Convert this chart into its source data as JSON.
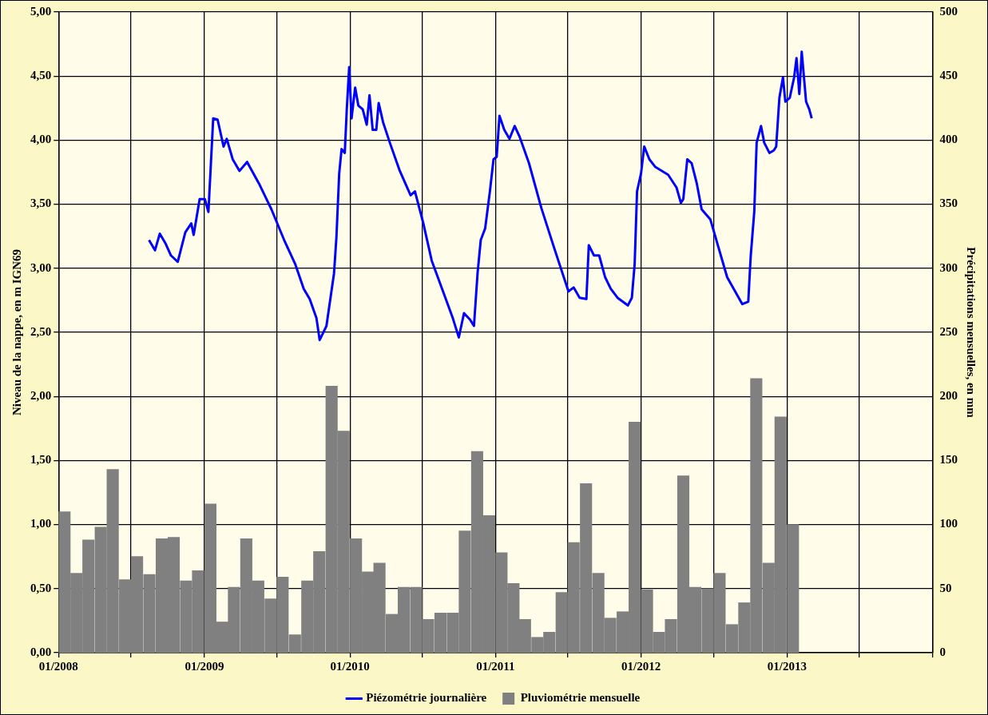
{
  "chart_data": {
    "type": "bar",
    "ylabel": "Niveau de la nappe, en m IGN69",
    "y2label": "Précipitations mensuelles, en mm",
    "xlim": [
      "2008-01",
      "2014-01"
    ],
    "xticks": [
      {
        "value": "2008-01",
        "label": "01/2008"
      },
      {
        "value": "2008-07",
        "label": null
      },
      {
        "value": "2009-01",
        "label": "01/2009"
      },
      {
        "value": "2009-07",
        "label": null
      },
      {
        "value": "2010-01",
        "label": "01/2010"
      },
      {
        "value": "2010-07",
        "label": null
      },
      {
        "value": "2011-01",
        "label": "01/2011"
      },
      {
        "value": "2011-07",
        "label": null
      },
      {
        "value": "2012-01",
        "label": "01/2012"
      },
      {
        "value": "2012-07",
        "label": null
      },
      {
        "value": "2013-01",
        "label": "01/2013"
      },
      {
        "value": "2013-07",
        "label": null
      },
      {
        "value": "2014-01",
        "label": null
      }
    ],
    "ylim": [
      0,
      5
    ],
    "yticks": [
      {
        "value": 0,
        "label": "0,00"
      },
      {
        "value": 0.5,
        "label": "0,50"
      },
      {
        "value": 1,
        "label": "1,00"
      },
      {
        "value": 1.5,
        "label": "1,50"
      },
      {
        "value": 2,
        "label": "2,00"
      },
      {
        "value": 2.5,
        "label": "2,50"
      },
      {
        "value": 3,
        "label": "3,00"
      },
      {
        "value": 3.5,
        "label": "3,50"
      },
      {
        "value": 4,
        "label": "4,00"
      },
      {
        "value": 4.5,
        "label": "4,50"
      },
      {
        "value": 5,
        "label": "5,00"
      }
    ],
    "y2lim": [
      0,
      500
    ],
    "y2ticks": [
      0,
      50,
      100,
      150,
      200,
      250,
      300,
      350,
      400,
      450,
      500
    ],
    "grid": true,
    "legend": "bottom",
    "series": [
      {
        "name": "Piézométrie journalière",
        "type": "line",
        "color": "#0000ff",
        "marker": "none",
        "line_style": "solid",
        "x": [
          "2008-08-15",
          "2008-08-30",
          "2008-09-11",
          "2008-09-26",
          "2008-10-09",
          "2008-10-26",
          "2008-11-14",
          "2008-11-29",
          "2008-12-05",
          "2008-12-20",
          "2009-01-02",
          "2009-01-11",
          "2009-01-23",
          "2009-02-03",
          "2009-02-18",
          "2009-02-26",
          "2009-03-13",
          "2009-03-30",
          "2009-04-18",
          "2009-05-18",
          "2009-06-18",
          "2009-07-20",
          "2009-08-17",
          "2009-09-07",
          "2009-09-22",
          "2009-10-09",
          "2009-10-17",
          "2009-11-03",
          "2009-11-22",
          "2009-11-28",
          "2009-12-05",
          "2009-12-11",
          "2009-12-19",
          "2009-12-24",
          "2009-12-30",
          "2010-01-05",
          "2010-01-14",
          "2010-01-22",
          "2010-02-02",
          "2010-02-12",
          "2010-02-19",
          "2010-02-27",
          "2010-03-08",
          "2010-03-14",
          "2010-03-25",
          "2010-04-11",
          "2010-05-06",
          "2010-06-02",
          "2010-06-13",
          "2010-07-04",
          "2010-07-25",
          "2010-08-20",
          "2010-09-16",
          "2010-10-01",
          "2010-10-14",
          "2010-10-29",
          "2010-11-08",
          "2010-11-17",
          "2010-11-25",
          "2010-12-06",
          "2010-12-18",
          "2010-12-27",
          "2011-01-04",
          "2011-01-11",
          "2011-01-23",
          "2011-02-05",
          "2011-02-18",
          "2011-03-02",
          "2011-03-26",
          "2011-04-26",
          "2011-05-28",
          "2011-07-03",
          "2011-07-16",
          "2011-07-31",
          "2011-08-17",
          "2011-08-23",
          "2011-09-05",
          "2011-09-18",
          "2011-10-03",
          "2011-10-17",
          "2011-11-03",
          "2011-11-29",
          "2011-12-09",
          "2011-12-16",
          "2011-12-22",
          "2012-01-01",
          "2012-01-09",
          "2012-01-22",
          "2012-02-06",
          "2012-03-09",
          "2012-03-30",
          "2012-04-10",
          "2012-04-16",
          "2012-04-26",
          "2012-05-07",
          "2012-05-20",
          "2012-06-01",
          "2012-06-23",
          "2012-08-04",
          "2012-09-11",
          "2012-09-26",
          "2012-10-02",
          "2012-10-11",
          "2012-10-17",
          "2012-10-28",
          "2012-11-05",
          "2012-11-18",
          "2012-11-29",
          "2012-12-05",
          "2012-12-13",
          "2012-12-22",
          "2012-12-28",
          "2013-01-08",
          "2013-01-19",
          "2013-01-25",
          "2013-02-01",
          "2013-02-07",
          "2013-02-18",
          "2013-02-26",
          "2013-03-04"
        ],
        "values": [
          3.22,
          3.14,
          3.27,
          3.19,
          3.1,
          3.05,
          3.28,
          3.35,
          3.26,
          3.54,
          3.54,
          3.44,
          4.17,
          4.16,
          3.95,
          4.01,
          3.85,
          3.76,
          3.83,
          3.66,
          3.46,
          3.22,
          3.03,
          2.84,
          2.76,
          2.61,
          2.44,
          2.55,
          2.96,
          3.24,
          3.74,
          3.93,
          3.9,
          4.24,
          4.57,
          4.17,
          4.41,
          4.27,
          4.24,
          4.12,
          4.35,
          4.08,
          4.08,
          4.29,
          4.14,
          3.98,
          3.76,
          3.57,
          3.6,
          3.35,
          3.06,
          2.84,
          2.61,
          2.46,
          2.65,
          2.6,
          2.55,
          2.96,
          3.22,
          3.31,
          3.6,
          3.85,
          3.87,
          4.19,
          4.08,
          4.01,
          4.11,
          4.03,
          3.82,
          3.47,
          3.16,
          2.82,
          2.85,
          2.77,
          2.76,
          3.18,
          3.1,
          3.1,
          2.93,
          2.84,
          2.77,
          2.71,
          2.77,
          3.03,
          3.6,
          3.74,
          3.95,
          3.85,
          3.79,
          3.73,
          3.63,
          3.51,
          3.54,
          3.85,
          3.82,
          3.66,
          3.46,
          3.38,
          2.93,
          2.72,
          2.74,
          3.09,
          3.44,
          3.98,
          4.11,
          3.98,
          3.9,
          3.92,
          3.95,
          4.33,
          4.49,
          4.3,
          4.33,
          4.49,
          4.64,
          4.36,
          4.69,
          4.3,
          4.24,
          4.17
        ]
      },
      {
        "name": "Pluviométrie mensuelle",
        "axis": "y2",
        "color": "#808080",
        "x": [
          "2008-01-16",
          "2008-02-15",
          "2008-03-16",
          "2008-04-16",
          "2008-05-16",
          "2008-06-16",
          "2008-07-16",
          "2008-08-16",
          "2008-09-16",
          "2008-10-16",
          "2008-11-16",
          "2008-12-16",
          "2009-01-16",
          "2009-02-15",
          "2009-03-16",
          "2009-04-16",
          "2009-05-16",
          "2009-06-16",
          "2009-07-16",
          "2009-08-16",
          "2009-09-16",
          "2009-10-16",
          "2009-11-16",
          "2009-12-16",
          "2010-01-16",
          "2010-02-15",
          "2010-03-16",
          "2010-04-16",
          "2010-05-16",
          "2010-06-16",
          "2010-07-16",
          "2010-08-16",
          "2010-09-16",
          "2010-10-16",
          "2010-11-16",
          "2010-12-16",
          "2011-01-16",
          "2011-02-15",
          "2011-03-16",
          "2011-04-16",
          "2011-05-16",
          "2011-06-16",
          "2011-07-16",
          "2011-08-16",
          "2011-09-16",
          "2011-10-16",
          "2011-11-16",
          "2011-12-16",
          "2012-01-16",
          "2012-02-15",
          "2012-03-16",
          "2012-04-16",
          "2012-05-16",
          "2012-06-16",
          "2012-07-16",
          "2012-08-16",
          "2012-09-16",
          "2012-10-16",
          "2012-11-16",
          "2012-12-16",
          "2013-01-16"
        ],
        "values": [
          110,
          62,
          88,
          98,
          143,
          57,
          75,
          61,
          89,
          90,
          56,
          64,
          116,
          24,
          51,
          89,
          56,
          42,
          59,
          14,
          56,
          79,
          208,
          173,
          89,
          63,
          70,
          30,
          51,
          51,
          26,
          31,
          31,
          95,
          157,
          107,
          78,
          54,
          26,
          12,
          16,
          47,
          86,
          132,
          62,
          27,
          32,
          180,
          49,
          16,
          26,
          138,
          51,
          50,
          62,
          22,
          39,
          214,
          70,
          184,
          100
        ]
      }
    ]
  }
}
